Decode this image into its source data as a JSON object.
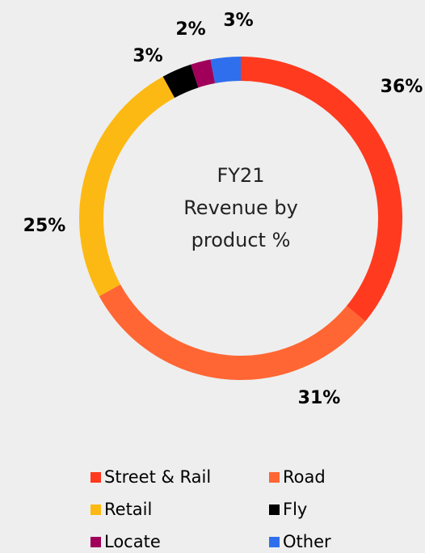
{
  "chart_data": {
    "type": "pie",
    "title": [
      "FY21",
      "Revenue by",
      "product %"
    ],
    "categories": [
      "Street & Rail",
      "Road",
      "Retail",
      "Fly",
      "Locate",
      "Other"
    ],
    "values": [
      36,
      31,
      25,
      3,
      2,
      3
    ],
    "value_labels": [
      "36%",
      "31%",
      "25%",
      "3%",
      "2%",
      "3%"
    ],
    "colors": [
      "#ff3a1f",
      "#ff6633",
      "#fdb913",
      "#000000",
      "#a0005a",
      "#2f6fed"
    ],
    "donut": true,
    "legend": "bottom"
  }
}
